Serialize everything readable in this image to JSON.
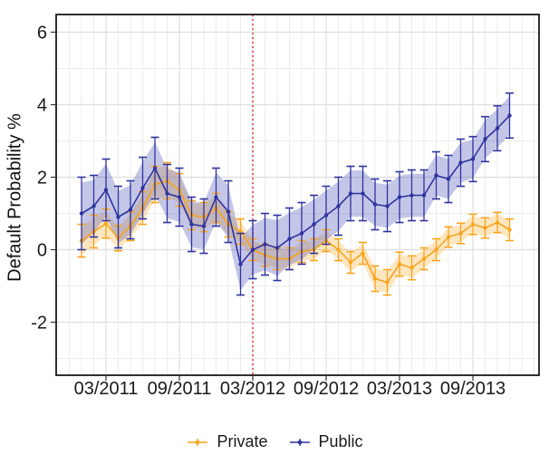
{
  "chart_data": {
    "type": "line",
    "title": "",
    "xlabel": "",
    "ylabel": "Default Probability %",
    "x": [
      "01/2011",
      "02/2011",
      "03/2011",
      "04/2011",
      "05/2011",
      "06/2011",
      "07/2011",
      "08/2011",
      "09/2011",
      "10/2011",
      "11/2011",
      "12/2011",
      "01/2012",
      "02/2012",
      "03/2012",
      "04/2012",
      "05/2012",
      "06/2012",
      "07/2012",
      "08/2012",
      "09/2012",
      "10/2012",
      "11/2012",
      "12/2012",
      "01/2013",
      "02/2013",
      "03/2013",
      "04/2013",
      "05/2013",
      "06/2013",
      "07/2013",
      "08/2013",
      "09/2013",
      "10/2013",
      "11/2013",
      "12/2013"
    ],
    "x_tick_labels": [
      "03/2011",
      "09/2011",
      "03/2012",
      "09/2012",
      "03/2013",
      "09/2013"
    ],
    "x_tick_indices": [
      2,
      8,
      14,
      20,
      26,
      32
    ],
    "y_ticks": [
      -2,
      0,
      2,
      4,
      6
    ],
    "ylim": [
      -3.45,
      6.45
    ],
    "grid": "on",
    "legend_position": "bottom",
    "vline": {
      "x": "03/2012",
      "x_index": 14,
      "color": "#DE2D26",
      "style": "dotted"
    },
    "series": [
      {
        "name": "Private",
        "color": "#F8A41B",
        "band_color": "rgba(248,164,27,0.28)",
        "values": [
          0.25,
          0.5,
          0.72,
          0.32,
          0.65,
          1.15,
          1.8,
          1.9,
          1.65,
          0.95,
          0.9,
          1.15,
          0.7,
          0.5,
          0.0,
          -0.15,
          -0.25,
          -0.25,
          -0.05,
          0.0,
          0.25,
          0.0,
          -0.35,
          -0.1,
          -0.8,
          -0.9,
          -0.4,
          -0.5,
          -0.25,
          0.0,
          0.35,
          0.45,
          0.7,
          0.6,
          0.75,
          0.55
        ],
        "err": [
          0.45,
          0.45,
          0.4,
          0.35,
          0.4,
          0.45,
          0.5,
          0.5,
          0.45,
          0.4,
          0.4,
          0.4,
          0.35,
          0.35,
          0.3,
          0.3,
          0.3,
          0.3,
          0.3,
          0.3,
          0.3,
          0.3,
          0.3,
          0.3,
          0.35,
          0.35,
          0.33,
          0.33,
          0.3,
          0.3,
          0.28,
          0.28,
          0.28,
          0.28,
          0.28,
          0.3
        ]
      },
      {
        "name": "Public",
        "color": "#2F33A0",
        "band_color": "rgba(70,78,180,0.32)",
        "values": [
          1.0,
          1.2,
          1.65,
          0.9,
          1.1,
          1.7,
          2.25,
          1.55,
          1.45,
          0.7,
          0.65,
          1.45,
          1.05,
          -0.4,
          0.0,
          0.15,
          0.05,
          0.3,
          0.45,
          0.7,
          0.95,
          1.2,
          1.55,
          1.55,
          1.25,
          1.2,
          1.45,
          1.5,
          1.5,
          2.05,
          1.95,
          2.4,
          2.5,
          3.05,
          3.35,
          3.7
        ],
        "err": [
          1.0,
          0.85,
          0.85,
          0.85,
          0.8,
          0.85,
          0.85,
          0.8,
          0.8,
          0.75,
          0.75,
          0.8,
          0.85,
          0.85,
          0.8,
          0.85,
          0.9,
          0.85,
          0.85,
          0.8,
          0.8,
          0.8,
          0.75,
          0.75,
          0.7,
          0.7,
          0.7,
          0.7,
          0.7,
          0.65,
          0.65,
          0.65,
          0.62,
          0.62,
          0.62,
          0.62
        ]
      }
    ]
  },
  "axes": {
    "y_title": "Default Probability %"
  },
  "legend": {
    "items": [
      {
        "label": "Private"
      },
      {
        "label": "Public"
      }
    ]
  }
}
